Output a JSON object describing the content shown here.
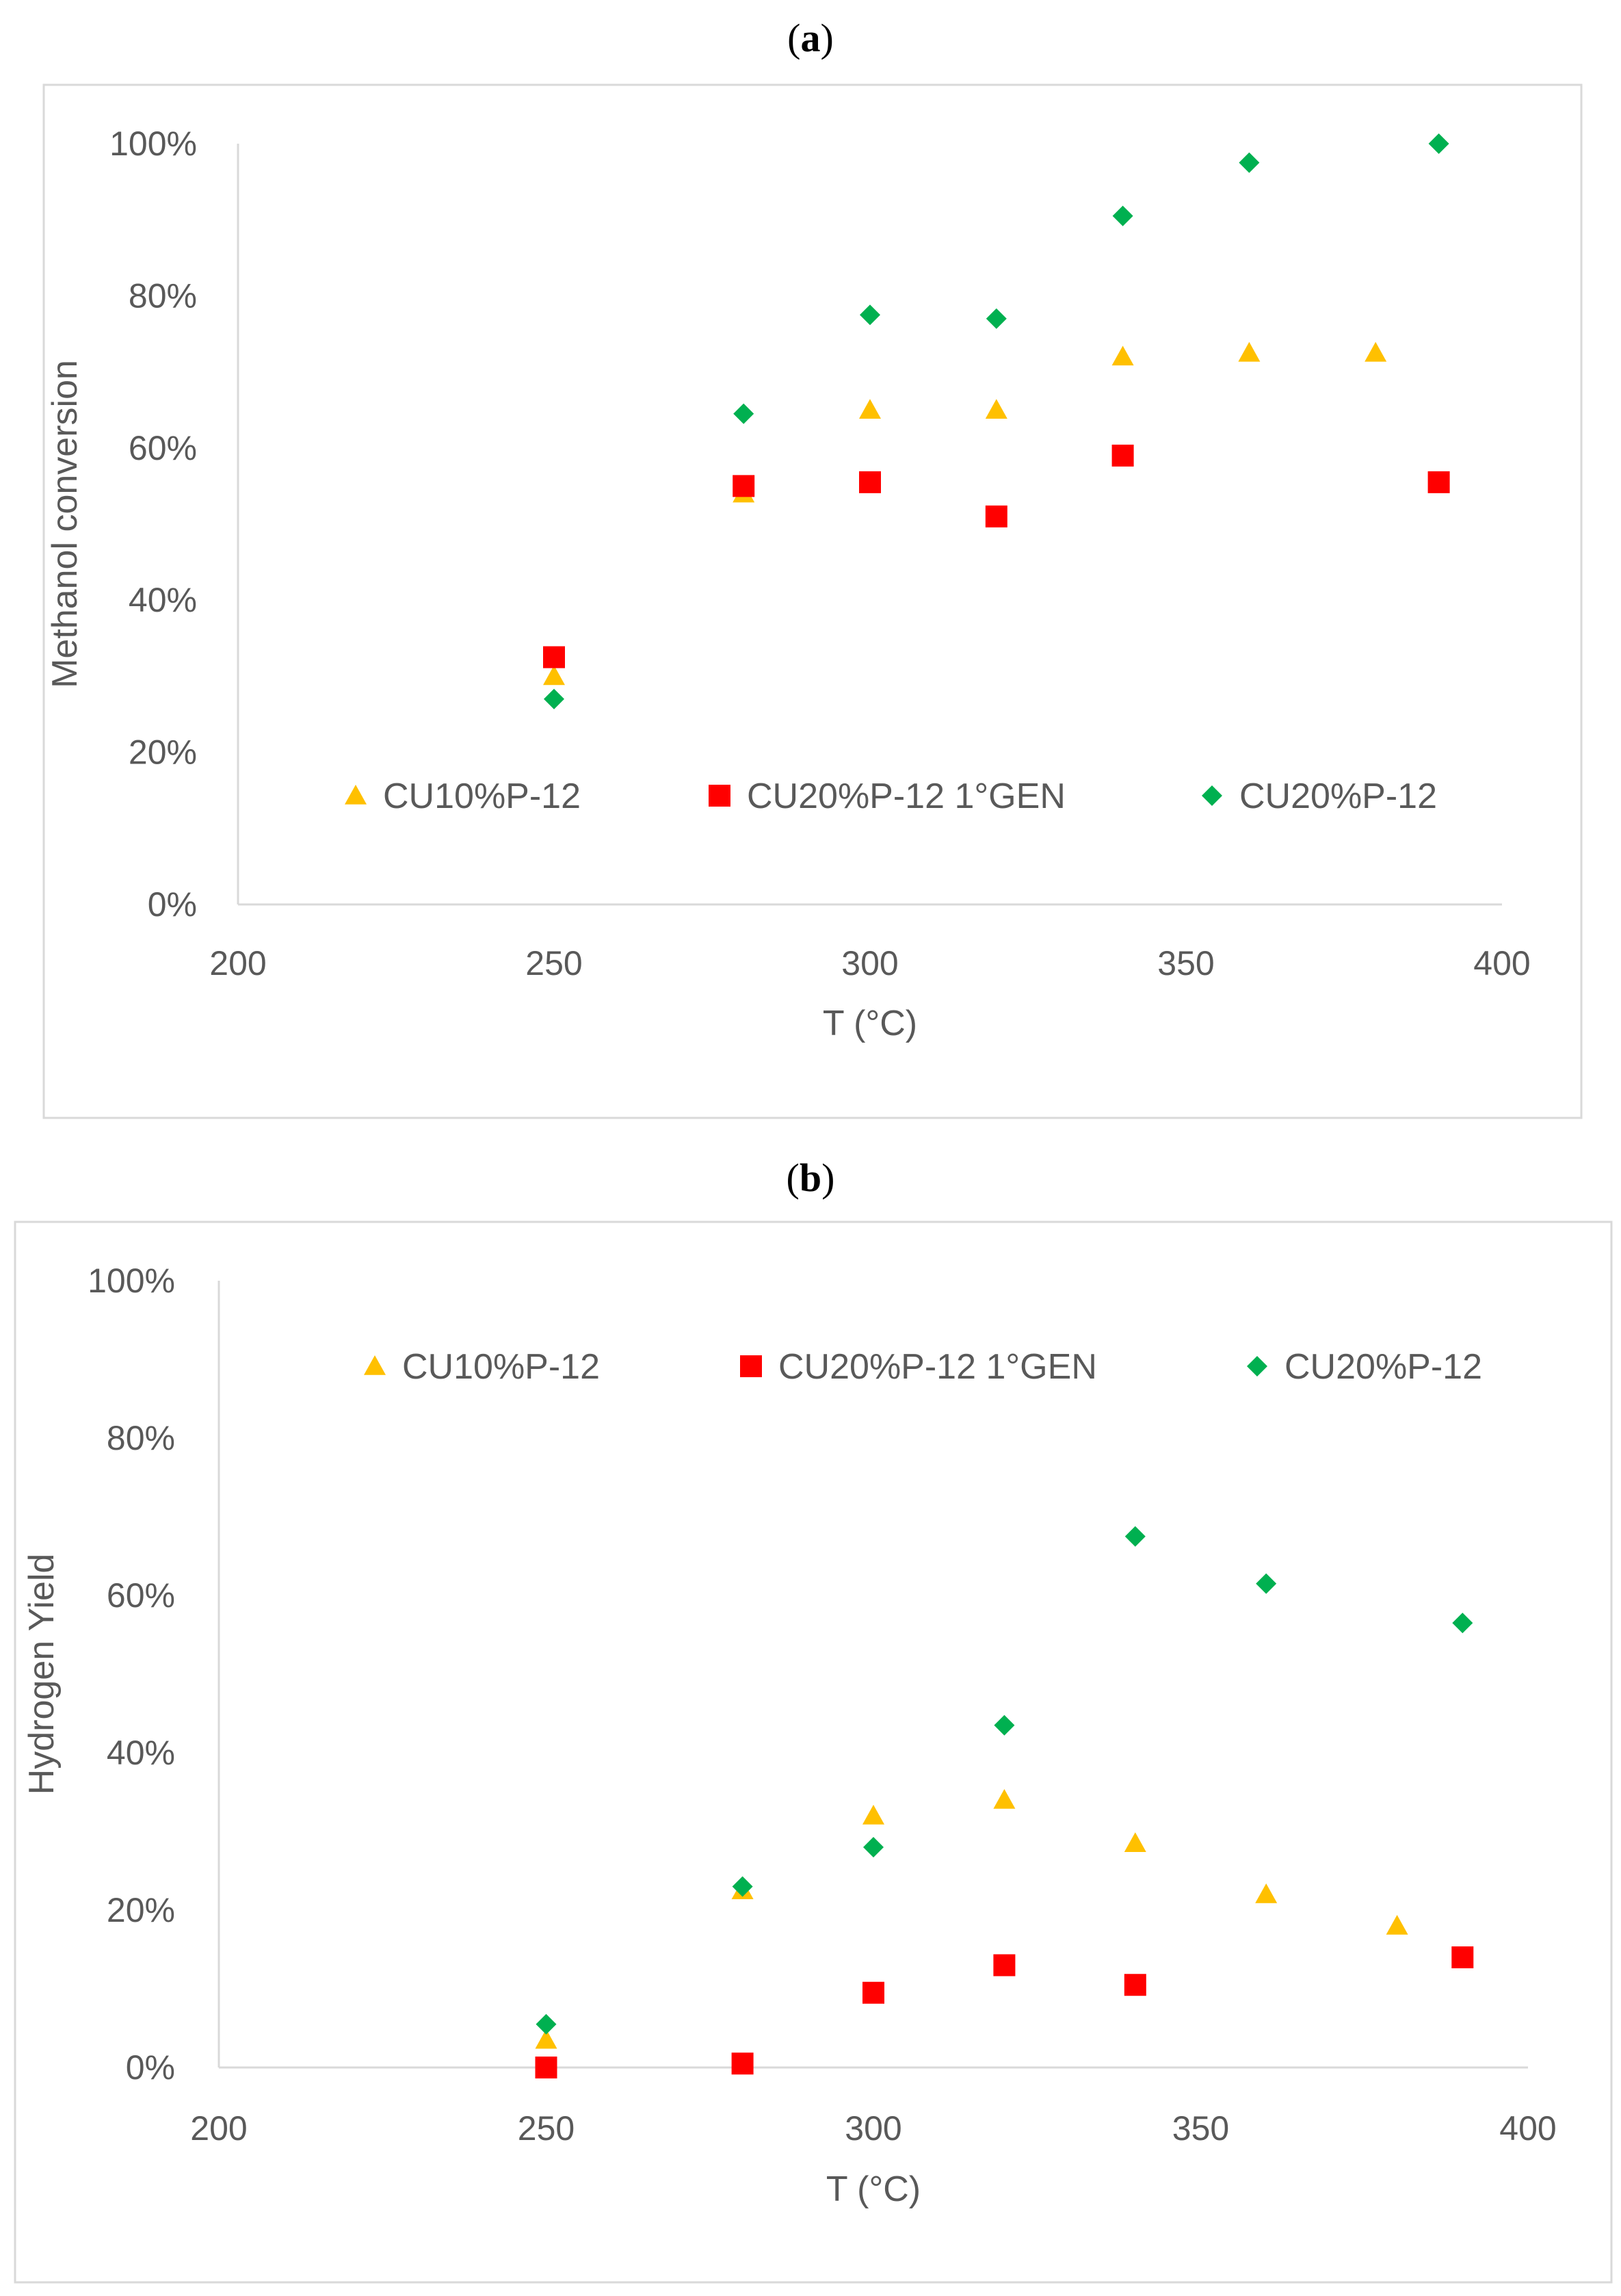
{
  "panels": [
    {
      "label_open": "(",
      "label_letter": "a",
      "label_close": ")"
    },
    {
      "label_open": "(",
      "label_letter": "b",
      "label_close": ")"
    }
  ],
  "colors": {
    "series1": "#FFC000",
    "series2": "#FF0000",
    "series3": "#00B050",
    "axis": "#D9D9D9",
    "text": "#595959"
  },
  "chart_data": [
    {
      "type": "scatter",
      "title": "(a)",
      "xlabel": "T (°C)",
      "ylabel": "Methanol conversion",
      "xlim": [
        200,
        400
      ],
      "ylim": [
        0,
        100
      ],
      "xticks": [
        200,
        250,
        300,
        350,
        400
      ],
      "yticks": [
        0,
        20,
        40,
        60,
        80,
        100
      ],
      "xtick_labels": [
        "200",
        "250",
        "300",
        "350",
        "400"
      ],
      "ytick_labels": [
        "0%",
        "20%",
        "40%",
        "60%",
        "80%",
        "100%"
      ],
      "legend_position": "middle",
      "series": [
        {
          "name": "CU10%P-12",
          "marker": "triangle",
          "color": "#FFC000",
          "x": [
            250,
            280,
            300,
            320,
            340,
            360,
            380
          ],
          "y": [
            30,
            54,
            65,
            65,
            72,
            72.5,
            72.5
          ]
        },
        {
          "name": "CU20%P-12 1°GEN",
          "marker": "square",
          "color": "#FF0000",
          "x": [
            250,
            280,
            300,
            320,
            340,
            390
          ],
          "y": [
            32.5,
            55,
            55.5,
            51,
            59,
            55.5
          ]
        },
        {
          "name": "CU20%P-12",
          "marker": "diamond",
          "color": "#00B050",
          "x": [
            250,
            280,
            300,
            320,
            340,
            360,
            390
          ],
          "y": [
            27,
            64.5,
            77.5,
            77,
            90.5,
            97.5,
            100
          ]
        }
      ]
    },
    {
      "type": "scatter",
      "title": "(b)",
      "xlabel": "T (°C)",
      "ylabel": "Hydrogen Yield",
      "xlim": [
        200,
        400
      ],
      "ylim": [
        0,
        100
      ],
      "xticks": [
        200,
        250,
        300,
        350,
        400
      ],
      "yticks": [
        0,
        20,
        40,
        60,
        80,
        100
      ],
      "xtick_labels": [
        "200",
        "250",
        "300",
        "350",
        "400"
      ],
      "ytick_labels": [
        "0%",
        "20%",
        "40%",
        "60%",
        "80%",
        "100%"
      ],
      "legend_position": "top",
      "series": [
        {
          "name": "CU10%P-12",
          "marker": "triangle",
          "color": "#FFC000",
          "x": [
            250,
            280,
            300,
            320,
            340,
            360,
            380
          ],
          "y": [
            3.5,
            22.5,
            32,
            34,
            28.5,
            22,
            18
          ]
        },
        {
          "name": "CU20%P-12 1°GEN",
          "marker": "square",
          "color": "#FF0000",
          "x": [
            250,
            280,
            300,
            320,
            340,
            390
          ],
          "y": [
            0,
            0.5,
            9.5,
            13,
            10.5,
            14
          ]
        },
        {
          "name": "CU20%P-12",
          "marker": "diamond",
          "color": "#00B050",
          "x": [
            250,
            280,
            300,
            320,
            340,
            360,
            390
          ],
          "y": [
            5.5,
            23,
            28,
            43.5,
            67.5,
            61.5,
            56.5
          ]
        }
      ]
    }
  ]
}
